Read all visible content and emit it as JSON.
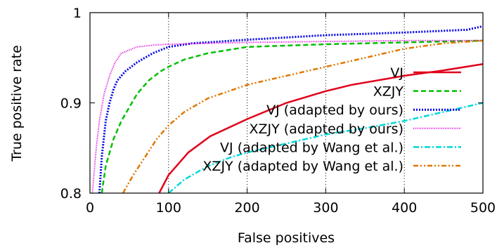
{
  "chart_data": {
    "type": "line",
    "xlabel": "False positives",
    "ylabel": "True positive rate",
    "xlim": [
      0,
      500
    ],
    "ylim": [
      0.8,
      1.0
    ],
    "x_ticks": [
      "0",
      "100",
      "200",
      "300",
      "400",
      "500"
    ],
    "y_ticks": [
      "0.8",
      "0.9",
      "1"
    ],
    "grid": "vertical dotted lines at x ticks",
    "legend_position": "right",
    "series": [
      {
        "name": "VJ",
        "color": "#e0001b",
        "dash": "solid",
        "points": [
          [
            88,
            0.8
          ],
          [
            100,
            0.82
          ],
          [
            125,
            0.845
          ],
          [
            153,
            0.863
          ],
          [
            200,
            0.882
          ],
          [
            250,
            0.9
          ],
          [
            300,
            0.913
          ],
          [
            333,
            0.92
          ],
          [
            400,
            0.93
          ],
          [
            450,
            0.936
          ],
          [
            500,
            0.943
          ]
        ]
      },
      {
        "name": "XZJY",
        "color": "#00c000",
        "dash": "dashed",
        "points": [
          [
            15,
            0.8
          ],
          [
            20,
            0.83
          ],
          [
            30,
            0.86
          ],
          [
            40,
            0.88
          ],
          [
            50,
            0.895
          ],
          [
            60,
            0.91
          ],
          [
            75,
            0.925
          ],
          [
            90,
            0.935
          ],
          [
            100,
            0.94
          ],
          [
            120,
            0.948
          ],
          [
            150,
            0.955
          ],
          [
            200,
            0.962
          ],
          [
            300,
            0.965
          ],
          [
            400,
            0.967
          ],
          [
            500,
            0.969
          ]
        ]
      },
      {
        "name": "VJ (adapted by ours)",
        "color": "#0000e6",
        "dash": "dotted",
        "points": [
          [
            12,
            0.8
          ],
          [
            15,
            0.84
          ],
          [
            20,
            0.88
          ],
          [
            25,
            0.9
          ],
          [
            30,
            0.915
          ],
          [
            35,
            0.925
          ],
          [
            45,
            0.935
          ],
          [
            60,
            0.945
          ],
          [
            80,
            0.955
          ],
          [
            100,
            0.962
          ],
          [
            130,
            0.966
          ],
          [
            200,
            0.97
          ],
          [
            300,
            0.975
          ],
          [
            400,
            0.978
          ],
          [
            480,
            0.981
          ],
          [
            500,
            0.985
          ]
        ]
      },
      {
        "name": "XZJY (adapted by ours)",
        "color": "#e000e0",
        "dash": "dotted-fine",
        "points": [
          [
            3,
            0.8
          ],
          [
            8,
            0.85
          ],
          [
            12,
            0.88
          ],
          [
            18,
            0.91
          ],
          [
            25,
            0.93
          ],
          [
            32,
            0.945
          ],
          [
            40,
            0.955
          ],
          [
            60,
            0.962
          ],
          [
            80,
            0.964
          ],
          [
            100,
            0.965
          ],
          [
            200,
            0.967
          ],
          [
            300,
            0.968
          ],
          [
            400,
            0.969
          ],
          [
            500,
            0.969
          ]
        ]
      },
      {
        "name": "VJ (adapted by Wang et al.)",
        "color": "#00d8d8",
        "dash": "dash-dot",
        "points": [
          [
            100,
            0.8
          ],
          [
            120,
            0.815
          ],
          [
            150,
            0.83
          ],
          [
            180,
            0.84
          ],
          [
            200,
            0.845
          ],
          [
            250,
            0.855
          ],
          [
            300,
            0.865
          ],
          [
            350,
            0.872
          ],
          [
            400,
            0.88
          ],
          [
            450,
            0.89
          ],
          [
            500,
            0.9
          ]
        ]
      },
      {
        "name": "XZJY (adapted by Wang et al.)",
        "color": "#e07800",
        "dash": "dash-dot-dot",
        "points": [
          [
            42,
            0.8
          ],
          [
            55,
            0.82
          ],
          [
            70,
            0.84
          ],
          [
            85,
            0.86
          ],
          [
            100,
            0.875
          ],
          [
            120,
            0.89
          ],
          [
            150,
            0.905
          ],
          [
            200,
            0.92
          ],
          [
            250,
            0.93
          ],
          [
            300,
            0.94
          ],
          [
            350,
            0.95
          ],
          [
            400,
            0.96
          ],
          [
            450,
            0.966
          ],
          [
            500,
            0.969
          ]
        ]
      }
    ]
  }
}
